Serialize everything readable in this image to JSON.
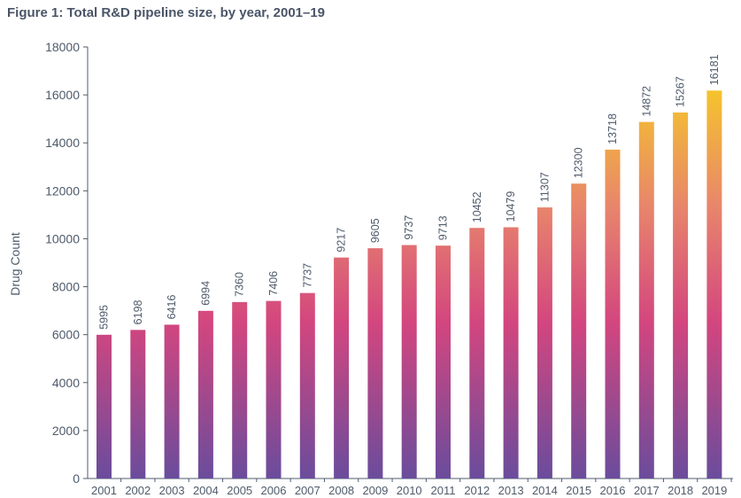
{
  "title": "Figure 1: Total R&D pipeline size, by year, 2001–19",
  "chart_data": {
    "type": "bar",
    "title": "Figure 1: Total R&D pipeline size, by year, 2001–19",
    "xlabel": "",
    "ylabel": "Drug Count",
    "ylim": [
      0,
      18000
    ],
    "yticks": [
      0,
      2000,
      4000,
      6000,
      8000,
      10000,
      12000,
      14000,
      16000,
      18000
    ],
    "grid": false,
    "legend": "none",
    "categories": [
      "2001",
      "2002",
      "2003",
      "2004",
      "2005",
      "2006",
      "2007",
      "2008",
      "2009",
      "2010",
      "2011",
      "2012",
      "2013",
      "2014",
      "2015",
      "2016",
      "2017",
      "2018",
      "2019"
    ],
    "values": [
      5995,
      6198,
      6416,
      6994,
      7360,
      7406,
      7737,
      9217,
      9605,
      9737,
      9713,
      10452,
      10479,
      11307,
      12300,
      13718,
      14872,
      15267,
      16181
    ],
    "colors": {
      "gradient_top": "#f5c42c",
      "gradient_mid_upper": "#e8866b",
      "gradient_mid": "#d3467f",
      "gradient_bottom": "#6a4c9c",
      "axis": "#4f5b6b"
    }
  }
}
